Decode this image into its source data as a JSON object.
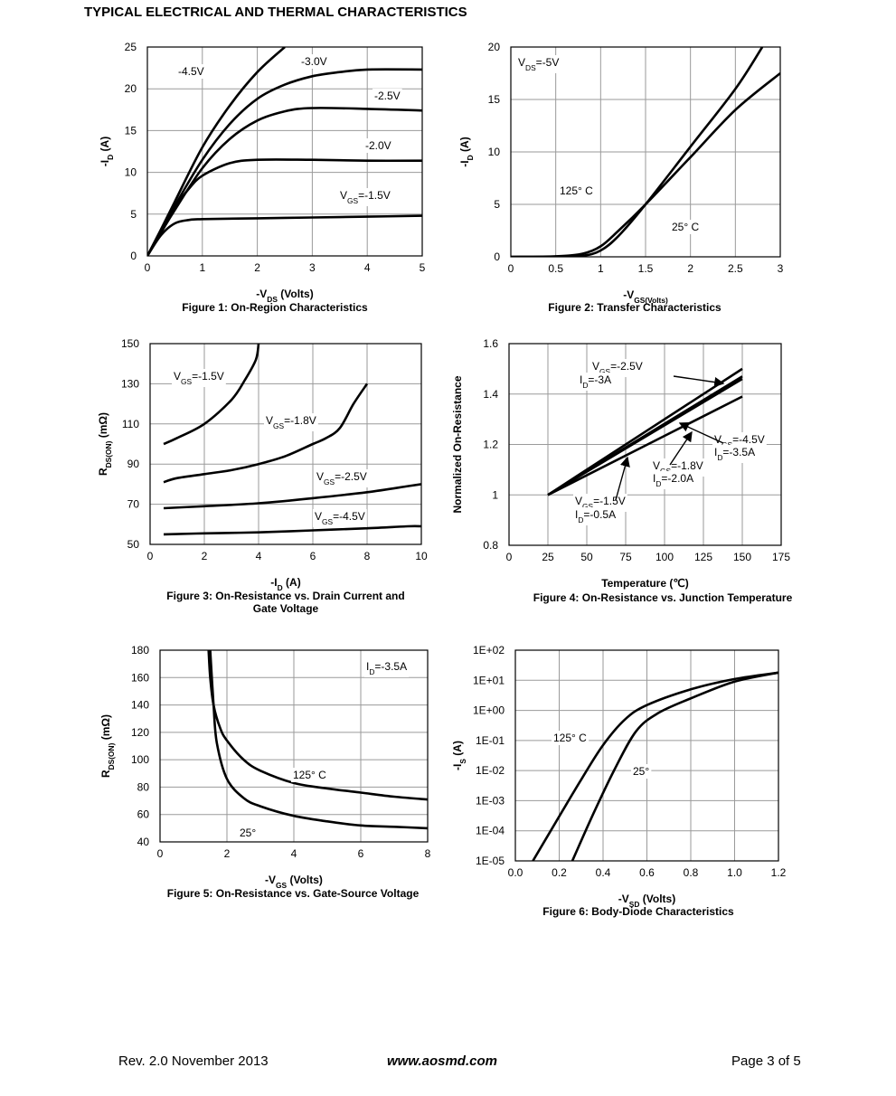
{
  "page": {
    "title": "TYPICAL ELECTRICAL AND THERMAL CHARACTERISTICS",
    "footer_left": "Rev. 2.0 November 2013",
    "footer_center": "www.aosmd.com",
    "footer_right": "Page 3 of 5"
  },
  "chart_data": [
    {
      "type": "line",
      "caption": "Figure 1: On-Region Characteristics",
      "xlabel": "-V_DS (Volts)",
      "ylabel": "-I_D (A)",
      "xlim": [
        0,
        5
      ],
      "ylim": [
        0,
        25
      ],
      "xticks": [
        0,
        1,
        2,
        3,
        4,
        5
      ],
      "yticks": [
        0,
        5,
        10,
        15,
        20,
        25
      ],
      "grid": true,
      "series": [
        {
          "name": "-4.5V",
          "x": [
            0,
            0.25,
            0.5,
            1,
            1.5,
            2,
            2.5
          ],
          "y": [
            0,
            3.2,
            6.5,
            13,
            18,
            22,
            25
          ]
        },
        {
          "name": "-3.0V",
          "x": [
            0,
            0.25,
            0.5,
            1,
            1.5,
            2,
            2.5,
            3,
            3.5,
            4,
            5
          ],
          "y": [
            0,
            3,
            6,
            11.5,
            15.8,
            18.8,
            20.5,
            21.5,
            22,
            22.3,
            22.3
          ]
        },
        {
          "name": "-2.5V",
          "x": [
            0,
            0.25,
            0.5,
            1,
            1.5,
            2,
            2.5,
            3,
            4,
            5
          ],
          "y": [
            0,
            2.8,
            5.5,
            10.5,
            14,
            16.2,
            17.3,
            17.7,
            17.6,
            17.4
          ]
        },
        {
          "name": "-2.0V",
          "x": [
            0,
            0.25,
            0.5,
            0.75,
            1,
            1.5,
            2,
            3,
            4,
            5
          ],
          "y": [
            0,
            3,
            5.8,
            8,
            9.6,
            11.1,
            11.5,
            11.5,
            11.4,
            11.4
          ]
        },
        {
          "name": "V_GS=-1.5V",
          "x": [
            0,
            0.25,
            0.5,
            0.75,
            1,
            2,
            3,
            4,
            5
          ],
          "y": [
            0,
            2.5,
            3.9,
            4.3,
            4.4,
            4.5,
            4.6,
            4.7,
            4.8
          ]
        }
      ],
      "labels": [
        "-4.5V",
        "-3.0V",
        "-2.5V",
        "-2.0V",
        "V_GS=-1.5V"
      ]
    },
    {
      "type": "line",
      "caption": "Figure 2: Transfer Characteristics",
      "xlabel": "-V_GS(Volts)",
      "ylabel": "-I_D (A)",
      "xlim": [
        0,
        3
      ],
      "ylim": [
        0,
        20
      ],
      "xticks": [
        "0",
        "0.5",
        "1",
        "1.5",
        "2",
        "2.5",
        "3"
      ],
      "yticks": [
        0,
        5,
        10,
        15,
        20
      ],
      "grid": true,
      "series": [
        {
          "name": "125° C",
          "x": [
            0,
            0.5,
            0.8,
            1,
            1.2,
            1.5,
            2,
            2.5,
            3
          ],
          "y": [
            0,
            0.05,
            0.3,
            1,
            2.5,
            5,
            9.5,
            14,
            17.5
          ]
        },
        {
          "name": "25° C",
          "x": [
            0,
            0.5,
            0.8,
            1,
            1.2,
            1.5,
            2,
            2.5,
            2.8
          ],
          "y": [
            0,
            0,
            0.1,
            0.6,
            2,
            5,
            10.5,
            16,
            20
          ]
        }
      ],
      "labels": [
        "V_DS=-5V",
        "125° C",
        "25° C"
      ]
    },
    {
      "type": "line",
      "caption": "Figure 3: On-Resistance vs. Drain Current and Gate Voltage",
      "xlabel": "-I_D (A)",
      "ylabel": "R_DS(ON) (mΩ)",
      "xlim": [
        0,
        10
      ],
      "ylim": [
        50,
        150
      ],
      "xticks": [
        0,
        2,
        4,
        6,
        8,
        10
      ],
      "yticks": [
        50,
        70,
        90,
        110,
        130,
        150
      ],
      "grid": true,
      "series": [
        {
          "name": "V_GS=-1.5V",
          "x": [
            0.5,
            1,
            2,
            3,
            3.5,
            3.9,
            4
          ],
          "y": [
            100,
            103,
            110,
            122,
            132,
            142,
            150
          ]
        },
        {
          "name": "V_GS=-1.8V",
          "x": [
            0.5,
            1,
            2,
            3,
            4,
            5,
            6,
            6.5,
            7,
            7.5,
            8
          ],
          "y": [
            81,
            83,
            85,
            87,
            90,
            94,
            100,
            103,
            108,
            120,
            130
          ]
        },
        {
          "name": "V_GS=-2.5V",
          "x": [
            0.5,
            2,
            4,
            6,
            8,
            9.5,
            10
          ],
          "y": [
            68,
            69,
            70.5,
            73,
            76,
            79,
            80
          ]
        },
        {
          "name": "V_GS=-4.5V",
          "x": [
            0.5,
            2,
            4,
            6,
            8,
            9.5,
            10
          ],
          "y": [
            55,
            55.5,
            56,
            57,
            58,
            59,
            59
          ]
        }
      ],
      "labels": [
        "V_GS=-1.5V",
        "V_GS=-1.8V",
        "V_GS=-2.5V",
        "V_GS=-4.5V"
      ]
    },
    {
      "type": "line",
      "caption": "Figure 4: On-Resistance vs. Junction Temperature",
      "xlabel": "Temperature (℃)",
      "ylabel": "Normalized On-Resistance",
      "xlim": [
        0,
        175
      ],
      "ylim": [
        0.8,
        1.6
      ],
      "xticks": [
        "0",
        "25",
        "50",
        "75",
        "100",
        "125",
        "150",
        "175"
      ],
      "yticks": [
        "0.8",
        "1",
        "1.2",
        "1.4",
        "1.6"
      ],
      "grid": true,
      "series": [
        {
          "name": "V_GS=-2.5V I_D=-3A",
          "x": [
            25,
            150
          ],
          "y": [
            1.0,
            1.5
          ]
        },
        {
          "name": "V_GS=-1.8V I_D=-2.0A",
          "x": [
            25,
            150
          ],
          "y": [
            1.0,
            1.47
          ]
        },
        {
          "name": "V_GS=-1.5V I_D=-0.5A",
          "x": [
            25,
            150
          ],
          "y": [
            1.0,
            1.46
          ]
        },
        {
          "name": "V_GS=-4.5V I_D=-3.5A",
          "x": [
            25,
            150
          ],
          "y": [
            1.0,
            1.39
          ]
        }
      ],
      "labels": [
        "V_GS=-2.5V",
        "I_D=-3A",
        "V_GS=-4.5V",
        "I_D=-3.5A",
        "V_GS=-1.8V",
        "I_D=-2.0A",
        "V_GS=-1.5V",
        "I_D=-0.5A"
      ]
    },
    {
      "type": "line",
      "caption": "Figure 5: On-Resistance vs. Gate-Source Voltage",
      "xlabel": "-V_GS (Volts)",
      "ylabel": "R_DS(ON) (mΩ)",
      "xlim": [
        0,
        8
      ],
      "ylim": [
        40,
        180
      ],
      "xticks": [
        0,
        2,
        4,
        6,
        8
      ],
      "yticks": [
        40,
        60,
        80,
        100,
        120,
        140,
        160,
        180
      ],
      "grid": true,
      "series": [
        {
          "name": "125° C",
          "x": [
            1.45,
            1.5,
            1.6,
            1.8,
            2,
            2.5,
            3,
            4,
            5,
            6,
            7,
            8
          ],
          "y": [
            180,
            160,
            140,
            123,
            114,
            100,
            92,
            83,
            79,
            76,
            73,
            71
          ]
        },
        {
          "name": "25°",
          "x": [
            1.5,
            1.6,
            1.7,
            2,
            2.5,
            3,
            4,
            5,
            6,
            7,
            8
          ],
          "y": [
            180,
            140,
            112,
            86,
            72,
            66,
            59,
            55,
            52,
            51,
            50
          ]
        }
      ],
      "labels": [
        "I_D=-3.5A",
        "125° C",
        "25°"
      ]
    },
    {
      "type": "line",
      "caption": "Figure 6: Body-Diode Characteristics",
      "xlabel": "-V_SD (Volts)",
      "ylabel": "-I_S (A)",
      "xlim": [
        0,
        1.2
      ],
      "ylim": [
        "1E-05",
        "1E+02"
      ],
      "log_y": true,
      "xticks": [
        "0.0",
        "0.2",
        "0.4",
        "0.6",
        "0.8",
        "1.0",
        "1.2"
      ],
      "yticks": [
        "1E-05",
        "1E-04",
        "1E-03",
        "1E-02",
        "1E-01",
        "1E+00",
        "1E+01",
        "1E+02"
      ],
      "grid": true,
      "series": [
        {
          "name": "125° C",
          "x": [
            0.08,
            0.2,
            0.3,
            0.4,
            0.5,
            0.6,
            0.8,
            1.0,
            1.2
          ],
          "y": [
            1e-05,
            0.0003,
            0.005,
            0.07,
            0.5,
            1.5,
            5,
            11,
            18
          ]
        },
        {
          "name": "25°",
          "x": [
            0.26,
            0.35,
            0.45,
            0.55,
            0.65,
            0.8,
            1.0,
            1.2
          ],
          "y": [
            1e-05,
            0.0003,
            0.01,
            0.2,
            0.8,
            2.5,
            9,
            18
          ]
        }
      ],
      "labels": [
        "125° C",
        "25°"
      ]
    }
  ]
}
